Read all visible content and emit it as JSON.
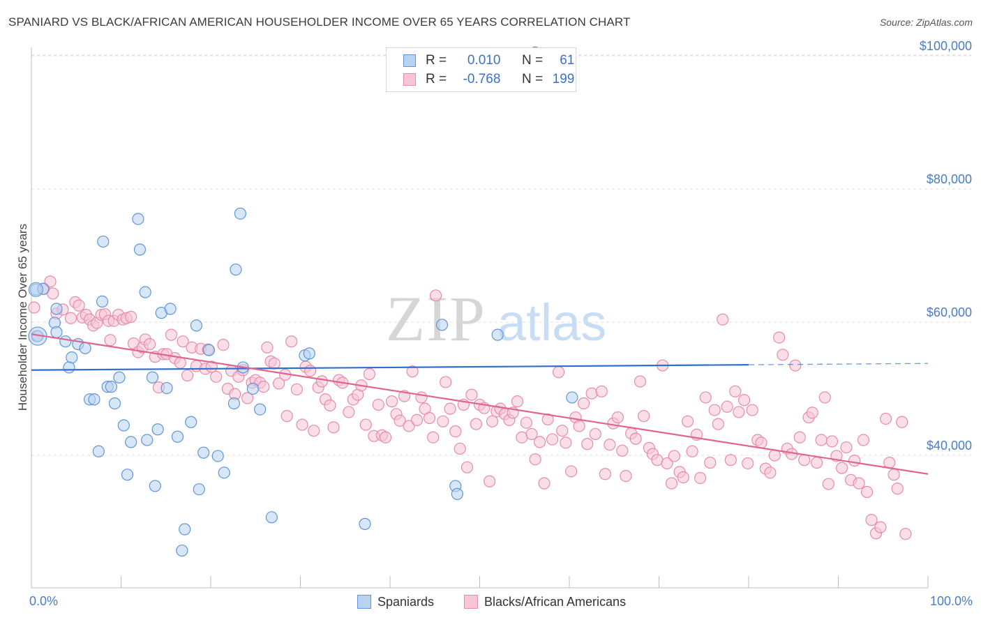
{
  "title": "SPANIARD VS BLACK/AFRICAN AMERICAN HOUSEHOLDER INCOME OVER 65 YEARS CORRELATION CHART",
  "source": "Source: ZipAtlas.com",
  "watermark": {
    "zip": "ZIP",
    "atlas": "atlas"
  },
  "legend": {
    "rows": [
      {
        "r_label": "R =",
        "r_value": "0.010",
        "n_label": "N =",
        "n_value": "61"
      },
      {
        "r_label": "R =",
        "r_value": "-0.768",
        "n_label": "N =",
        "n_value": "199"
      }
    ]
  },
  "bottom_legend": {
    "spaniards": "Spaniards",
    "black": "Blacks/African Americans"
  },
  "x_axis": {
    "left_label": "0.0%",
    "right_label": "100.0%"
  },
  "colors": {
    "blue_fill": "#b8d3f2",
    "blue_stroke": "#5f95d8",
    "blue_line": "#2f6fcf",
    "pink_fill": "#f7c5d6",
    "pink_stroke": "#e88aab",
    "pink_line": "#e0648f",
    "tick_text": "#4a7cc7",
    "grid": "#dcdcdc"
  },
  "chart_data": {
    "type": "scatter",
    "title": "SPANIARD VS BLACK/AFRICAN AMERICAN HOUSEHOLDER INCOME OVER 65 YEARS CORRELATION CHART",
    "xlabel": "",
    "ylabel": "Householder Income Over 65 years",
    "xlim": [
      0,
      100
    ],
    "ylim": [
      20000,
      101000
    ],
    "yticks": [
      40000,
      60000,
      80000,
      100000
    ],
    "ytick_labels": [
      "$40,000",
      "$60,000",
      "$80,000",
      "$100,000"
    ],
    "grid": true,
    "series": [
      {
        "name": "Spaniards",
        "r": 0.01,
        "n": 61,
        "trend": {
          "x0": 0,
          "y0": 52800,
          "x1": 80,
          "y1": 53600,
          "dashed_to_x": 100,
          "dashed_to_y": 53800
        },
        "points": [
          [
            0.5,
            64900
          ],
          [
            0.7,
            57900
          ],
          [
            1.3,
            65000
          ],
          [
            2.8,
            62000
          ],
          [
            2.6,
            59900
          ],
          [
            2.8,
            58500
          ],
          [
            3.8,
            57100
          ],
          [
            4.5,
            54700
          ],
          [
            4.2,
            53200
          ],
          [
            5.2,
            56700
          ],
          [
            6.0,
            56100
          ],
          [
            6.5,
            48400
          ],
          [
            7.0,
            48400
          ],
          [
            7.5,
            40600
          ],
          [
            7.9,
            63100
          ],
          [
            8.0,
            72100
          ],
          [
            8.5,
            50300
          ],
          [
            8.9,
            50300
          ],
          [
            9.3,
            47800
          ],
          [
            9.8,
            51700
          ],
          [
            10.3,
            44500
          ],
          [
            10.7,
            37100
          ],
          [
            11.1,
            42000
          ],
          [
            11.9,
            75500
          ],
          [
            12.1,
            70900
          ],
          [
            12.7,
            64500
          ],
          [
            12.9,
            42300
          ],
          [
            13.5,
            51700
          ],
          [
            13.8,
            35400
          ],
          [
            14.1,
            43900
          ],
          [
            14.5,
            61400
          ],
          [
            15.1,
            50100
          ],
          [
            15.5,
            62000
          ],
          [
            16.3,
            42800
          ],
          [
            16.8,
            25700
          ],
          [
            17.1,
            28900
          ],
          [
            17.8,
            45000
          ],
          [
            18.4,
            59500
          ],
          [
            18.7,
            34900
          ],
          [
            19.2,
            40400
          ],
          [
            19.8,
            55800
          ],
          [
            20.8,
            39900
          ],
          [
            21.5,
            37400
          ],
          [
            22.6,
            47800
          ],
          [
            22.8,
            67900
          ],
          [
            23.3,
            76300
          ],
          [
            23.6,
            53200
          ],
          [
            24.7,
            50000
          ],
          [
            25.5,
            46900
          ],
          [
            26.8,
            30700
          ],
          [
            30.5,
            55000
          ],
          [
            31.0,
            55300
          ],
          [
            37.2,
            29700
          ],
          [
            45.8,
            59600
          ],
          [
            47.3,
            35400
          ],
          [
            47.5,
            34200
          ],
          [
            52.0,
            58100
          ],
          [
            60.3,
            48700
          ],
          [
            40.9,
            99500
          ],
          [
            56.2,
            100500
          ],
          [
            58.6,
            98000
          ]
        ]
      },
      {
        "name": "Blacks/African Americans",
        "r": -0.768,
        "n": 199,
        "trend": {
          "x0": 0,
          "y0": 58200,
          "x1": 100,
          "y1": 37200
        },
        "points": [
          [
            0.3,
            62200
          ],
          [
            0.6,
            57900
          ],
          [
            1.4,
            65000
          ],
          [
            2.1,
            66100
          ],
          [
            2.4,
            64300
          ],
          [
            2.8,
            61300
          ],
          [
            3.5,
            61900
          ],
          [
            4.4,
            60600
          ],
          [
            4.9,
            63000
          ],
          [
            5.3,
            62500
          ],
          [
            5.7,
            60700
          ],
          [
            6.1,
            61100
          ],
          [
            6.5,
            60400
          ],
          [
            6.9,
            59500
          ],
          [
            7.3,
            59900
          ],
          [
            7.8,
            61100
          ],
          [
            8.2,
            61200
          ],
          [
            8.6,
            60200
          ],
          [
            8.8,
            57300
          ],
          [
            9.2,
            60200
          ],
          [
            9.7,
            61100
          ],
          [
            10.2,
            60400
          ],
          [
            10.6,
            60600
          ],
          [
            11.1,
            60800
          ],
          [
            11.4,
            56800
          ],
          [
            11.9,
            55500
          ],
          [
            12.4,
            56200
          ],
          [
            12.7,
            57400
          ],
          [
            13.2,
            56700
          ],
          [
            13.8,
            54800
          ],
          [
            14.2,
            50200
          ],
          [
            14.7,
            55200
          ],
          [
            15.1,
            55200
          ],
          [
            15.6,
            58100
          ],
          [
            16.0,
            54600
          ],
          [
            16.6,
            53900
          ],
          [
            16.9,
            57100
          ],
          [
            17.4,
            52000
          ],
          [
            17.9,
            56200
          ],
          [
            18.4,
            53400
          ],
          [
            18.9,
            56000
          ],
          [
            19.4,
            53000
          ],
          [
            19.7,
            55900
          ],
          [
            20.1,
            53300
          ],
          [
            20.6,
            51800
          ],
          [
            21.4,
            56600
          ],
          [
            21.9,
            50000
          ],
          [
            22.3,
            52700
          ],
          [
            22.7,
            49200
          ],
          [
            23.1,
            51800
          ],
          [
            23.6,
            52800
          ],
          [
            24.1,
            48600
          ],
          [
            24.6,
            50900
          ],
          [
            25.0,
            51300
          ],
          [
            25.5,
            50900
          ],
          [
            25.9,
            50300
          ],
          [
            26.3,
            56200
          ],
          [
            26.7,
            54100
          ],
          [
            27.1,
            53800
          ],
          [
            27.6,
            50800
          ],
          [
            28.3,
            52100
          ],
          [
            28.5,
            45900
          ],
          [
            29.0,
            57100
          ],
          [
            29.6,
            49900
          ],
          [
            30.2,
            44600
          ],
          [
            30.6,
            53300
          ],
          [
            31.1,
            52700
          ],
          [
            31.5,
            43700
          ],
          [
            32.0,
            50200
          ],
          [
            32.4,
            51100
          ],
          [
            32.8,
            48400
          ],
          [
            33.3,
            47500
          ],
          [
            33.7,
            44200
          ],
          [
            34.3,
            51300
          ],
          [
            34.7,
            50900
          ],
          [
            35.4,
            46500
          ],
          [
            35.9,
            48400
          ],
          [
            36.4,
            49100
          ],
          [
            36.8,
            50500
          ],
          [
            37.3,
            44600
          ],
          [
            37.7,
            52200
          ],
          [
            38.2,
            42900
          ],
          [
            38.7,
            47600
          ],
          [
            39.1,
            43000
          ],
          [
            39.5,
            42700
          ],
          [
            40.2,
            48100
          ],
          [
            40.7,
            46200
          ],
          [
            41.1,
            45200
          ],
          [
            41.6,
            48900
          ],
          [
            42.1,
            44400
          ],
          [
            42.5,
            52600
          ],
          [
            43.0,
            45300
          ],
          [
            43.5,
            48700
          ],
          [
            43.9,
            47000
          ],
          [
            44.4,
            45600
          ],
          [
            44.8,
            42700
          ],
          [
            45.1,
            64000
          ],
          [
            45.9,
            45100
          ],
          [
            46.2,
            51000
          ],
          [
            46.7,
            47000
          ],
          [
            47.3,
            43600
          ],
          [
            47.8,
            41000
          ],
          [
            48.2,
            47600
          ],
          [
            48.6,
            38200
          ],
          [
            49.1,
            49100
          ],
          [
            49.6,
            44700
          ],
          [
            50.0,
            47600
          ],
          [
            50.5,
            47100
          ],
          [
            51.1,
            36100
          ],
          [
            51.4,
            45100
          ],
          [
            51.9,
            46600
          ],
          [
            52.3,
            47000
          ],
          [
            52.8,
            46200
          ],
          [
            53.3,
            45300
          ],
          [
            53.7,
            46400
          ],
          [
            54.2,
            48100
          ],
          [
            54.7,
            42700
          ],
          [
            55.2,
            44900
          ],
          [
            55.8,
            43200
          ],
          [
            56.2,
            39400
          ],
          [
            56.7,
            42000
          ],
          [
            57.2,
            35800
          ],
          [
            57.6,
            45400
          ],
          [
            58.1,
            42400
          ],
          [
            58.8,
            52500
          ],
          [
            59.2,
            43700
          ],
          [
            59.6,
            41900
          ],
          [
            60.2,
            37600
          ],
          [
            60.7,
            45700
          ],
          [
            61.1,
            44400
          ],
          [
            61.6,
            47800
          ],
          [
            62.0,
            41700
          ],
          [
            62.5,
            49300
          ],
          [
            62.9,
            43200
          ],
          [
            63.6,
            49600
          ],
          [
            64.0,
            37200
          ],
          [
            64.5,
            41600
          ],
          [
            64.9,
            44800
          ],
          [
            65.4,
            45700
          ],
          [
            65.9,
            40700
          ],
          [
            66.3,
            36900
          ],
          [
            66.9,
            43300
          ],
          [
            67.4,
            42500
          ],
          [
            67.9,
            51100
          ],
          [
            68.3,
            45900
          ],
          [
            68.9,
            41100
          ],
          [
            69.3,
            40200
          ],
          [
            69.8,
            39300
          ],
          [
            70.4,
            53500
          ],
          [
            70.9,
            38800
          ],
          [
            71.4,
            35800
          ],
          [
            71.7,
            39900
          ],
          [
            72.3,
            37500
          ],
          [
            72.7,
            36700
          ],
          [
            73.2,
            45100
          ],
          [
            73.7,
            40600
          ],
          [
            74.2,
            43100
          ],
          [
            74.6,
            36600
          ],
          [
            75.2,
            48700
          ],
          [
            75.7,
            38900
          ],
          [
            76.2,
            46800
          ],
          [
            76.6,
            44700
          ],
          [
            77.1,
            60400
          ],
          [
            77.6,
            47300
          ],
          [
            78.0,
            39300
          ],
          [
            78.5,
            49600
          ],
          [
            78.9,
            46500
          ],
          [
            79.5,
            48300
          ],
          [
            79.9,
            38800
          ],
          [
            80.4,
            46800
          ],
          [
            81.0,
            42300
          ],
          [
            81.4,
            41900
          ],
          [
            81.9,
            38000
          ],
          [
            82.4,
            37400
          ],
          [
            82.9,
            40000
          ],
          [
            83.4,
            57700
          ],
          [
            83.8,
            55100
          ],
          [
            84.3,
            41000
          ],
          [
            84.8,
            40200
          ],
          [
            85.2,
            53500
          ],
          [
            85.7,
            42700
          ],
          [
            86.2,
            39300
          ],
          [
            86.7,
            45700
          ],
          [
            87.1,
            46400
          ],
          [
            87.6,
            38900
          ],
          [
            88.1,
            42300
          ],
          [
            88.5,
            48700
          ],
          [
            88.9,
            35700
          ],
          [
            89.3,
            42100
          ],
          [
            89.8,
            39900
          ],
          [
            90.4,
            38100
          ],
          [
            90.9,
            41200
          ],
          [
            91.4,
            36300
          ],
          [
            91.8,
            39200
          ],
          [
            92.3,
            35800
          ],
          [
            92.8,
            42300
          ],
          [
            93.2,
            34500
          ],
          [
            93.7,
            30300
          ],
          [
            94.2,
            28300
          ],
          [
            94.7,
            29200
          ],
          [
            95.3,
            45500
          ],
          [
            95.7,
            38900
          ],
          [
            96.2,
            37100
          ],
          [
            96.6,
            35000
          ],
          [
            97.1,
            45000
          ],
          [
            97.5,
            28200
          ]
        ]
      }
    ]
  }
}
